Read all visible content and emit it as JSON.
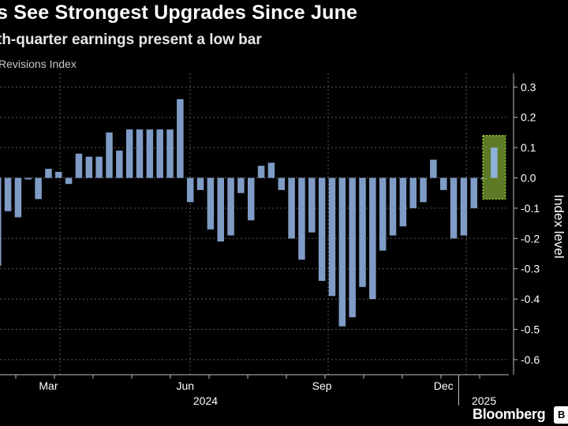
{
  "header": {
    "title": "s See Strongest Upgrades Since June",
    "subtitle": "th-quarter earnings present a low bar",
    "series_label": "Revisions Index"
  },
  "footer": {
    "brand": "Bloomberg"
  },
  "colors": {
    "background": "#000000",
    "bar": "#7f9cc6",
    "highlight_fill": "#6f8f2e",
    "highlight_stroke": "#9acd32",
    "grid": "#5a5a5a",
    "text": "#ffffff"
  },
  "chart_data": {
    "type": "bar",
    "title": "s See Strongest Upgrades Since June",
    "ylabel": "Index level",
    "xlabel": "",
    "ylim": [
      -0.65,
      0.33
    ],
    "yticks": [
      0.3,
      0.2,
      0.1,
      0.0,
      -0.1,
      -0.2,
      -0.3,
      -0.4,
      -0.5,
      -0.6
    ],
    "ytick_labels": [
      "0.3",
      "0.2",
      "0.1",
      "0.0",
      "-0.1",
      "-0.2",
      "-0.3",
      "-0.4",
      "-0.5",
      "-0.6"
    ],
    "values": [
      -0.29,
      -0.11,
      -0.13,
      -0.005,
      -0.07,
      0.03,
      0.02,
      -0.02,
      0.08,
      0.07,
      0.07,
      0.15,
      0.09,
      0.16,
      0.16,
      0.16,
      0.16,
      0.16,
      0.26,
      -0.08,
      -0.04,
      -0.17,
      -0.21,
      -0.19,
      -0.05,
      -0.14,
      0.04,
      0.05,
      -0.04,
      -0.2,
      -0.27,
      -0.18,
      -0.34,
      -0.39,
      -0.49,
      -0.46,
      -0.36,
      -0.4,
      -0.24,
      -0.19,
      -0.16,
      -0.1,
      -0.08,
      0.06,
      -0.04,
      -0.2,
      -0.19,
      -0.1,
      -0.005,
      0.1
    ],
    "highlight_last": true,
    "grid": true,
    "x_labels": [
      {
        "label": "Mar",
        "index": 5
      },
      {
        "label": "Jun",
        "index": 18.5
      },
      {
        "label": "Sep",
        "index": 32
      },
      {
        "label": "Dec",
        "index": 44
      }
    ],
    "x_year_labels": [
      {
        "label": "2024",
        "index": 20.5
      },
      {
        "label": "2025",
        "index": 48
      }
    ],
    "year_divider_index": 45.5
  }
}
